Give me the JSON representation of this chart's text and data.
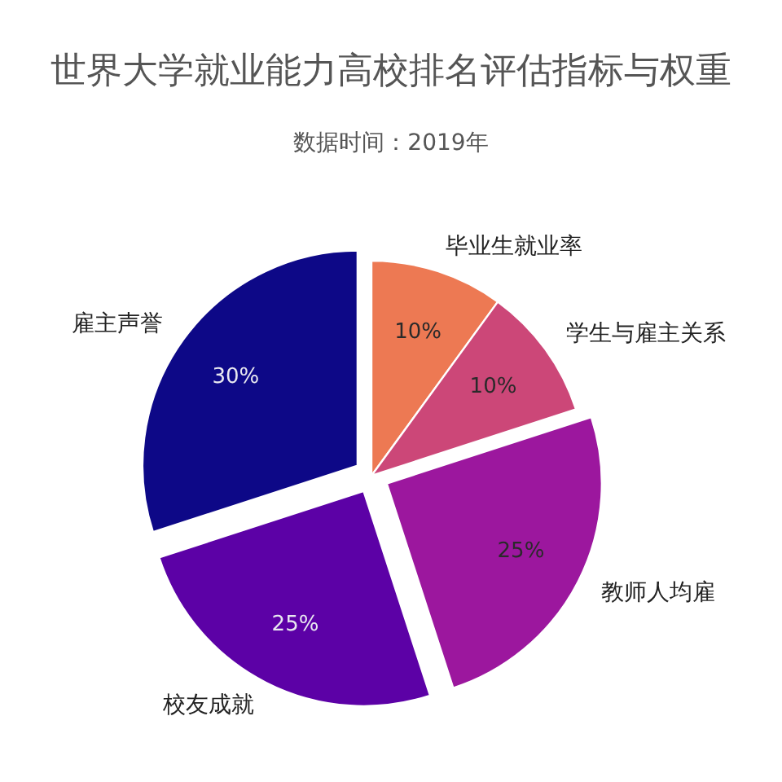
{
  "chart_data": {
    "type": "pie",
    "title": "世界大学就业能力高校排名评估指标与权重",
    "subtitle": "数据时间：2019年",
    "categories": [
      "毕业生就业率",
      "学生与雇主关系",
      "教师人均雇",
      "校友成就",
      "雇主声誉"
    ],
    "values": [
      10,
      10,
      25,
      25,
      30
    ],
    "value_labels": [
      "10%",
      "10%",
      "25%",
      "25%",
      "30%"
    ],
    "colors": [
      "#ed7953",
      "#cc4778",
      "#9c179e",
      "#5c01a6",
      "#0d0887"
    ]
  }
}
